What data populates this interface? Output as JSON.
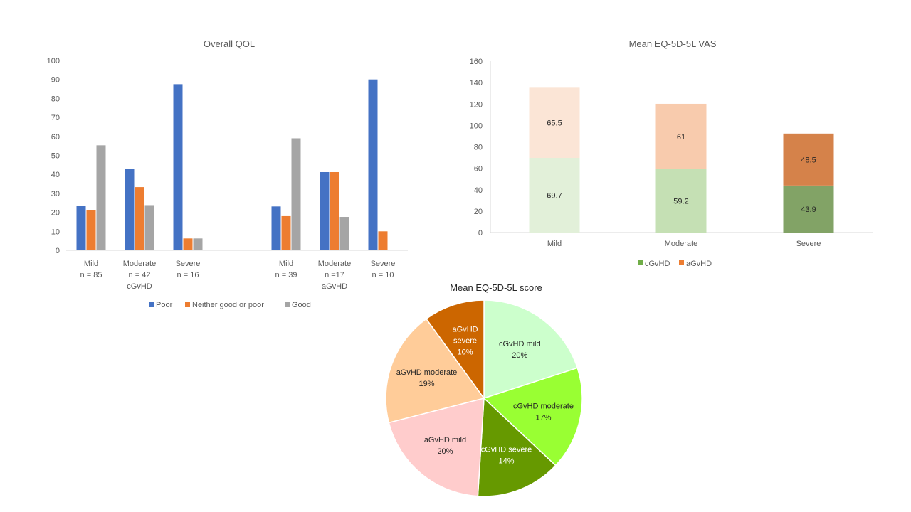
{
  "chart_data": [
    {
      "type": "bar",
      "title": "Overall QOL",
      "ylim": [
        0,
        100
      ],
      "yticks": [
        0,
        10,
        20,
        30,
        40,
        50,
        60,
        70,
        80,
        90,
        100
      ],
      "groups": [
        {
          "label": "cGvHD",
          "categories": [
            {
              "name": "Mild",
              "n": "n = 85"
            },
            {
              "name": "Moderate",
              "n": "n = 42"
            },
            {
              "name": "Severe",
              "n": "n = 16"
            }
          ]
        },
        {
          "label": "aGvHD",
          "categories": [
            {
              "name": "Mild",
              "n": "n = 39"
            },
            {
              "name": "Moderate",
              "n": "n =17"
            },
            {
              "name": "Severe",
              "n": "n = 10"
            }
          ]
        }
      ],
      "series": [
        {
          "name": "Poor",
          "color": "#4472C4",
          "values": [
            23.5,
            42.9,
            87.5,
            23.1,
            41.2,
            90
          ]
        },
        {
          "name": "Neither good or poor",
          "color": "#ED7D31",
          "values": [
            21.2,
            33.3,
            6.25,
            18,
            41.2,
            10
          ]
        },
        {
          "name": "Good",
          "color": "#A5A5A5",
          "values": [
            55.3,
            23.8,
            6.25,
            59,
            17.6,
            0
          ]
        }
      ],
      "legend": "bottom",
      "grid": false
    },
    {
      "type": "bar",
      "stacked": true,
      "title": "Mean EQ-5D-5L VAS",
      "categories": [
        "Mild",
        "Moderate",
        "Severe"
      ],
      "ylim": [
        0,
        160
      ],
      "yticks": [
        0,
        20,
        40,
        60,
        80,
        100,
        120,
        140,
        160
      ],
      "series": [
        {
          "name": "cGvHD",
          "legend_color": "#70AD47",
          "values": [
            69.7,
            59.2,
            43.9
          ],
          "labels": [
            "69.7",
            "59.2",
            "43.9"
          ],
          "colors": [
            "#E2F0D9",
            "#C5E0B4",
            "#82A366"
          ]
        },
        {
          "name": "aGvHD",
          "legend_color": "#ED7D31",
          "values": [
            65.5,
            61,
            48.5
          ],
          "labels": [
            "65.5",
            "61",
            "48.5"
          ],
          "colors": [
            "#FBE5D6",
            "#F8CBAD",
            "#D5824A"
          ]
        }
      ],
      "legend": "bottom",
      "grid": false
    },
    {
      "type": "pie",
      "title": "Mean EQ-5D-5L score",
      "slices": [
        {
          "label": "cGvHD mild",
          "pct": "20%",
          "value": 20,
          "color": "#CCFFCC",
          "text_color": "#262626"
        },
        {
          "label": "cGvHD moderate",
          "pct": "17%",
          "value": 17,
          "color": "#99FF33",
          "text_color": "#262626"
        },
        {
          "label": "cGvHD severe",
          "pct": "14%",
          "value": 14,
          "color": "#669900",
          "text_color": "#ffffff"
        },
        {
          "label": "aGvHD mild",
          "pct": "20%",
          "value": 20,
          "color": "#FFCCCC",
          "text_color": "#262626"
        },
        {
          "label": "aGvHD moderate",
          "pct": "19%",
          "value": 19,
          "color": "#FFCC99",
          "text_color": "#262626"
        },
        {
          "label": "aGvHD severe",
          "pct": "10%",
          "value": 10,
          "color": "#CC6600",
          "text_color": "#ffffff"
        }
      ]
    }
  ]
}
